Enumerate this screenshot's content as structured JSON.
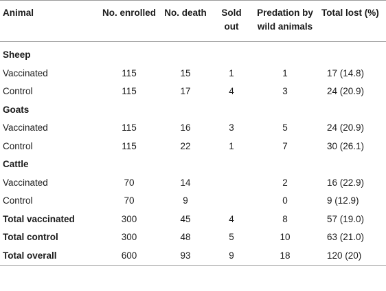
{
  "table": {
    "headers": [
      "Animal",
      "No. enrolled",
      "No. death",
      "Sold out",
      "Predation by wild animals",
      "Total lost (%)"
    ],
    "rows": [
      {
        "kind": "group",
        "label": "Sheep"
      },
      {
        "kind": "data",
        "label": "Vaccinated",
        "cells": [
          "115",
          "15",
          "1",
          "1",
          "17 (14.8)"
        ]
      },
      {
        "kind": "data",
        "label": "Control",
        "cells": [
          "115",
          "17",
          "4",
          "3",
          "24 (20.9)"
        ]
      },
      {
        "kind": "group",
        "label": "Goats"
      },
      {
        "kind": "data",
        "label": "Vaccinated",
        "cells": [
          "115",
          "16",
          "3",
          "5",
          "24 (20.9)"
        ]
      },
      {
        "kind": "data",
        "label": "Control",
        "cells": [
          "115",
          "22",
          "1",
          "7",
          "30 (26.1)"
        ]
      },
      {
        "kind": "group",
        "label": "Cattle"
      },
      {
        "kind": "data",
        "label": "Vaccinated",
        "cells": [
          "70",
          "14",
          "",
          "2",
          "16 (22.9)"
        ]
      },
      {
        "kind": "data",
        "label": "Control",
        "cells": [
          "70",
          "9",
          "",
          "0",
          "9 (12.9)"
        ]
      },
      {
        "kind": "total",
        "label": "Total vaccinated",
        "cells": [
          "300",
          "45",
          "4",
          "8",
          "57 (19.0)"
        ]
      },
      {
        "kind": "total",
        "label": "Total control",
        "cells": [
          "300",
          "48",
          "5",
          "10",
          "63 (21.0)"
        ]
      },
      {
        "kind": "total",
        "label": "Total overall",
        "cells": [
          "600",
          "93",
          "9",
          "18",
          "120 (20)"
        ]
      }
    ]
  }
}
